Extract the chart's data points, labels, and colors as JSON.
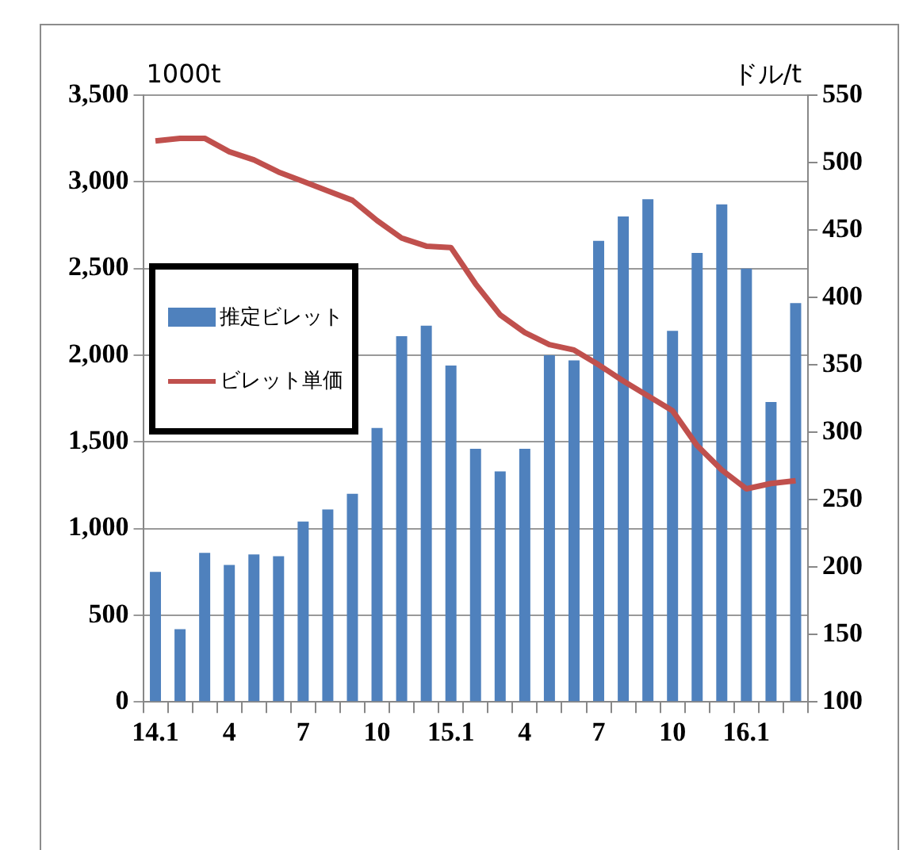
{
  "chart_data": {
    "type": "bar",
    "categories": [
      "14.1",
      null,
      null,
      "4",
      null,
      null,
      "7",
      null,
      null,
      "10",
      null,
      null,
      "15.1",
      null,
      null,
      "4",
      null,
      null,
      "7",
      null,
      null,
      "10",
      null,
      null,
      "16.1",
      null,
      null
    ],
    "series": [
      {
        "name": "推定ビレット",
        "type": "bar",
        "color": "#4f81bd",
        "values": [
          750,
          420,
          860,
          790,
          850,
          840,
          1040,
          1110,
          1200,
          1580,
          2110,
          2170,
          1940,
          1460,
          1330,
          1460,
          2000,
          1970,
          2660,
          2800,
          2900,
          2140,
          2590,
          2870,
          2500,
          1730,
          2300
        ]
      },
      {
        "name": "ビレット単価",
        "type": "line",
        "axis": "y2",
        "color": "#c0504d",
        "values": [
          516,
          518,
          518,
          508,
          502,
          493,
          486,
          479,
          472,
          457,
          444,
          438,
          437,
          410,
          387,
          374,
          365,
          361,
          350,
          338,
          327,
          316,
          290,
          272,
          258,
          262,
          264
        ]
      }
    ],
    "ylabel": "1000t",
    "y2label": "ドル/t",
    "ylim": [
      0,
      3500
    ],
    "yticks": [
      0,
      {
        "value": 500,
        "label": "500"
      },
      {
        "value": 1000,
        "label": "1,000"
      },
      {
        "value": 1500,
        "label": "1,500"
      },
      {
        "value": 2000,
        "label": "2,000"
      },
      {
        "value": 2500,
        "label": "2,500"
      },
      {
        "value": 3000,
        "label": "3,000"
      },
      {
        "value": 3500,
        "label": "3,500"
      }
    ],
    "y2lim": [
      100,
      550
    ],
    "y2ticks": [
      100,
      150,
      200,
      250,
      300,
      350,
      400,
      450,
      500,
      550
    ],
    "grid": "y",
    "legend": "left",
    "marker": "none"
  }
}
